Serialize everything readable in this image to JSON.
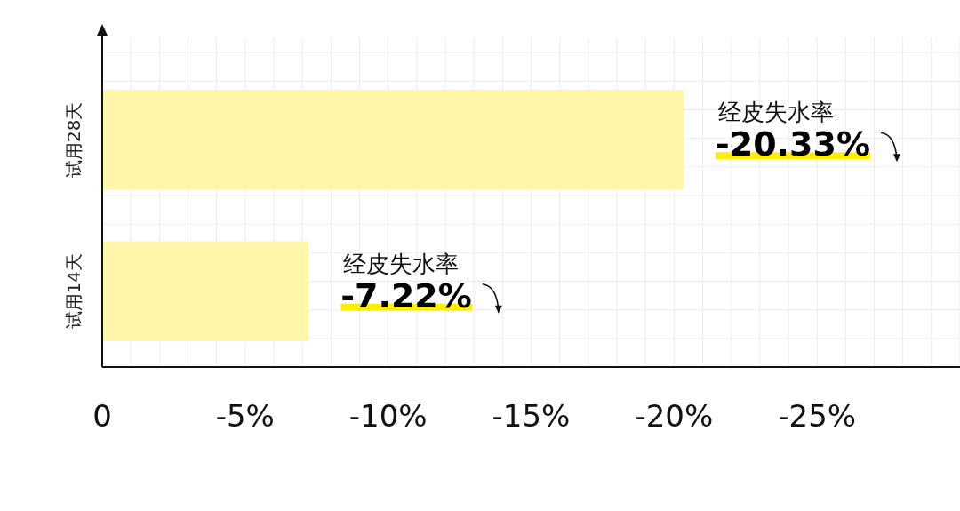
{
  "chart_data": {
    "type": "bar",
    "orientation": "horizontal",
    "categories": [
      "试用28天",
      "试用14天"
    ],
    "values": [
      -20.33,
      -7.22
    ],
    "value_labels": [
      "-20.33%",
      "-7.22%"
    ],
    "color": "#fff6a9",
    "xlim": [
      0,
      -30
    ],
    "xticks": [
      {
        "value": 0,
        "label": "0"
      },
      {
        "value": -5,
        "label": "-5%"
      },
      {
        "value": -10,
        "label": "-10%"
      },
      {
        "value": -15,
        "label": "-15%"
      },
      {
        "value": -20,
        "label": "-20%"
      },
      {
        "value": -25,
        "label": "-25%"
      }
    ],
    "grid": true,
    "annotations": [
      "经皮失水率",
      "经皮失水率"
    ]
  }
}
